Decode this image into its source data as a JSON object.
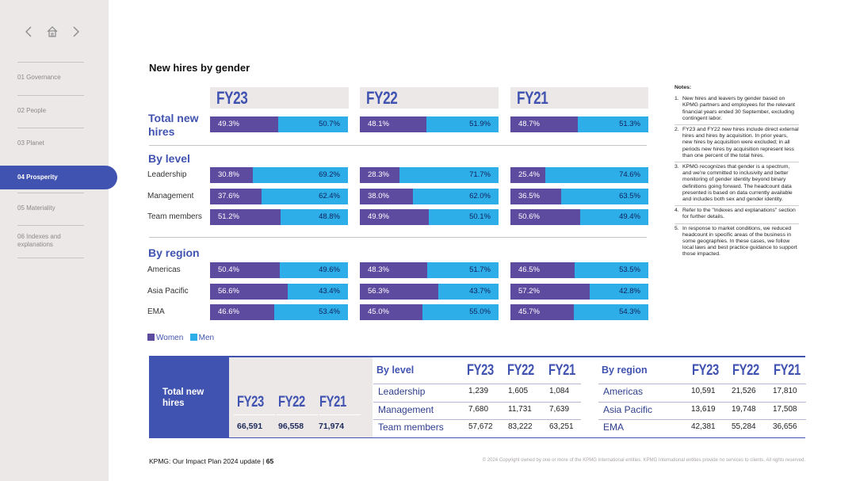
{
  "sidebar": {
    "items": [
      "01  Governance",
      "02  People",
      "03  Planet",
      "04  Prosperity",
      "05  Materiality",
      "06  Indexes and explanations"
    ],
    "active_index": 3
  },
  "title": "New hires by gender",
  "fy_headers": [
    "FY23",
    "FY22",
    "FY21"
  ],
  "total": {
    "label": "Total new hires",
    "values": [
      [
        "49.3%",
        "50.7%"
      ],
      [
        "48.1%",
        "51.9%"
      ],
      [
        "48.7%",
        "51.3%"
      ]
    ],
    "women": [
      49.3,
      48.1,
      48.7
    ]
  },
  "by_level": {
    "label": "By level",
    "rows": [
      {
        "name": "Leadership",
        "values": [
          [
            "30.8%",
            "69.2%"
          ],
          [
            "28.3%",
            "71.7%"
          ],
          [
            "25.4%",
            "74.6%"
          ]
        ],
        "women": [
          30.8,
          28.3,
          25.4
        ]
      },
      {
        "name": "Management",
        "values": [
          [
            "37.6%",
            "62.4%"
          ],
          [
            "38.0%",
            "62.0%"
          ],
          [
            "36.5%",
            "63.5%"
          ]
        ],
        "women": [
          37.6,
          38.0,
          36.5
        ]
      },
      {
        "name": "Team members",
        "values": [
          [
            "51.2%",
            "48.8%"
          ],
          [
            "49.9%",
            "50.1%"
          ],
          [
            "50.6%",
            "49.4%"
          ]
        ],
        "women": [
          51.2,
          49.9,
          50.6
        ]
      }
    ]
  },
  "by_region": {
    "label": "By region",
    "rows": [
      {
        "name": "Americas",
        "values": [
          [
            "50.4%",
            "49.6%"
          ],
          [
            "48.3%",
            "51.7%"
          ],
          [
            "46.5%",
            "53.5%"
          ]
        ],
        "women": [
          50.4,
          48.3,
          46.5
        ]
      },
      {
        "name": "Asia Pacific",
        "values": [
          [
            "56.6%",
            "43.4%"
          ],
          [
            "56.3%",
            "43.7%"
          ],
          [
            "57.2%",
            "42.8%"
          ]
        ],
        "women": [
          56.6,
          56.3,
          57.2
        ]
      },
      {
        "name": "EMA",
        "values": [
          [
            "46.6%",
            "53.4%"
          ],
          [
            "45.0%",
            "55.0%"
          ],
          [
            "45.7%",
            "54.3%"
          ]
        ],
        "women": [
          46.6,
          45.0,
          45.7
        ]
      }
    ]
  },
  "legend": {
    "women": "Women",
    "men": "Men"
  },
  "colors": {
    "women": "#5d4ba0",
    "men": "#2eaee8",
    "brand": "#4153b0"
  },
  "notes": {
    "heading": "Notes:",
    "items": [
      "New hires and leavers by gender based on KPMG partners and employees for the relevant financial years ended 30 September, excluding contingent labor.",
      "FY23 and FY22 new hires include direct external hires and hires by acquisition. In prior years, new hires by acquisition were excluded; in all periods new hires by acquisition represent less than one percent of the total hires.",
      "KPMG recognizes that gender is a spectrum, and we're committed to inclusivity and better monitoring of gender identity beyond binary definitions going forward. The headcount data presented is based on data currently available and includes both sex and gender identity.",
      "Refer to the \"Indexes and explanations\" section for further details.",
      "In response to market conditions, we reduced headcount in specific areas of the business in some geographies. In these cases, we follow local laws and best practice guidance to support those impacted."
    ]
  },
  "totals_table": {
    "label": "Total new hires",
    "fy": [
      "FY23",
      "FY22",
      "FY21"
    ],
    "values": [
      "66,591",
      "96,558",
      "71,974"
    ],
    "by_level": {
      "label": "By level",
      "rows": [
        [
          "Leadership",
          "1,239",
          "1,605",
          "1,084"
        ],
        [
          "Management",
          "7,680",
          "11,731",
          "7,639"
        ],
        [
          "Team members",
          "57,672",
          "83,222",
          "63,251"
        ]
      ]
    },
    "by_region": {
      "label": "By region",
      "rows": [
        [
          "Americas",
          "10,591",
          "21,526",
          "17,810"
        ],
        [
          "Asia Pacific",
          "13,619",
          "19,748",
          "17,508"
        ],
        [
          "EMA",
          "42,381",
          "55,284",
          "36,656"
        ]
      ]
    }
  },
  "footer": {
    "left": "KPMG: Our Impact Plan 2024 update  |  ",
    "page": "65",
    "copyright": "© 2024 Copyright owned by one or more of the KPMG International entities. KPMG International entities provide no services to clients. All rights reserved."
  }
}
